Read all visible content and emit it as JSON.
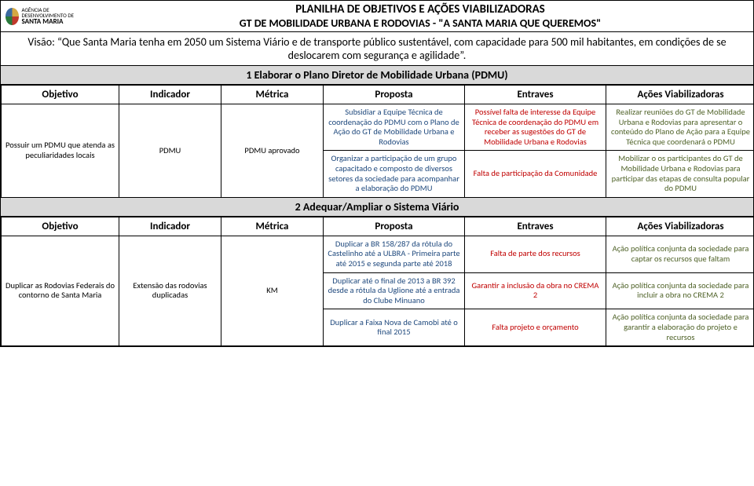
{
  "logo": {
    "line1": "AGÊNCIA DE DESENVOLVIMENTO DE",
    "line2": "SANTA MARIA"
  },
  "titles": {
    "t1": "PLANILHA DE OBJETIVOS E AÇÕES VIABILIZADORAS",
    "t2": "GT DE MOBILIDADE URBANA E RODOVIAS - \"A SANTA MARIA QUE QUEREMOS\""
  },
  "vision": "Visão: “Que Santa Maria tenha em 2050 um Sistema Viário e de transporte público sustentável, com capacidade para 500 mil habitantes, em condições de se deslocarem com segurança e agilidade”.",
  "section1": "1 Elaborar o Plano Diretor de Mobilidade Urbana (PDMU)",
  "section2": "2 Adequar/Ampliar o Sistema Viário",
  "headers": {
    "objetivo": "Objetivo",
    "indicador": "Indicador",
    "metrica": "Métrica",
    "proposta": "Proposta",
    "entraves": "Entraves",
    "acoes": "Ações Viabilizadoras"
  },
  "s1": {
    "objetivo": "Possuir um  PDMU que atenda as peculiaridades locais",
    "indicador": "PDMU",
    "metrica": "PDMU aprovado",
    "r1": {
      "proposta": "Subsidiar a Equipe Técnica de coordenação do PDMU com o Plano de Ação do GT de Mobilidade Urbana e Rodovias",
      "entraves": "Possível falta de interesse da Equipe Técnica de coordenação do PDMU em receber as sugestões do GT de Mobilidade Urbana e Rodovias",
      "acoes": "Realizar reuniões do GT de Mobilidade Urbana e Rodovias para apresentar o conteúdo do Plano de Ação para a Equipe Técnica que coordenará o PDMU"
    },
    "r2": {
      "proposta": "Organizar a participação de um grupo capacitado e composto de diversos setores da sociedade para acompanhar a elaboração do  PDMU",
      "entraves": "Falta de participação da Comunidade",
      "acoes": "Mobilizar o os participantes do GT de Mobilidade Urbana e Rodovias para participar das etapas de consulta popular do PDMU"
    }
  },
  "s2": {
    "objetivo": "Duplicar as Rodovias Federais do contorno de Santa Maria",
    "indicador": "Extensão das rodovias duplicadas",
    "metrica": "KM",
    "r1": {
      "proposta": "Duplicar a BR 158/287 da rótula do Castelinho até a ULBRA - Primeira parte até 2015 e segunda parte até 2018",
      "entraves": "Falta de parte dos recursos",
      "acoes": "Ação política conjunta da sociedade para captar os recursos que faltam"
    },
    "r2": {
      "proposta": "Duplicar até o final de 2013 a BR 392 desde a rótula da Uglione até a entrada do Clube Minuano",
      "entraves": "Garantir a inclusão da obra no CREMA 2",
      "acoes": "Ação política conjunta da sociedade para incluir a obra no CREMA 2"
    },
    "r3": {
      "proposta": "Duplicar a Faixa Nova de Camobi até o final 2015",
      "entraves": "Falta projeto e orçamento",
      "acoes": "Ação política conjunta da sociedade para garantir a elaboração do projeto e recursos"
    }
  }
}
